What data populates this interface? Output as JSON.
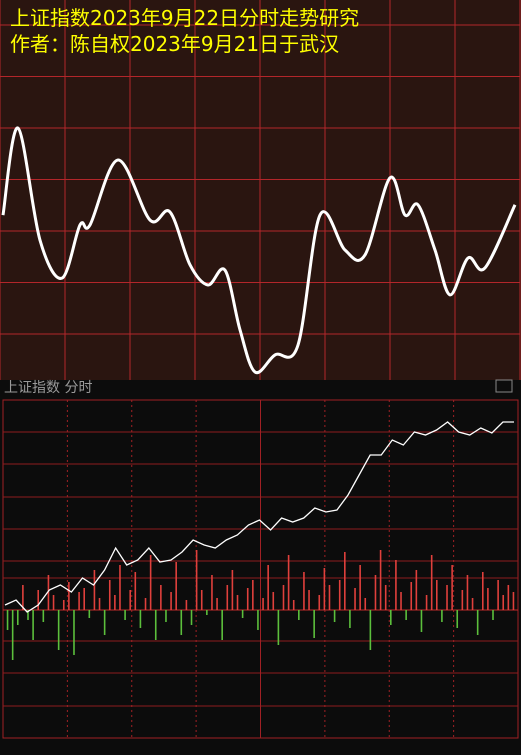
{
  "chart_data": [
    {
      "type": "line",
      "title": "上证指数2023年9月22日分时走势研究",
      "subtitle": "作者：陈自权2023年9月21日于武汉",
      "x": [
        3,
        18,
        40,
        62,
        80,
        90,
        118,
        150,
        170,
        190,
        208,
        225,
        240,
        255,
        275,
        298,
        320,
        345,
        365,
        390,
        405,
        418,
        435,
        450,
        468,
        485,
        515
      ],
      "series": [
        {
          "color": "#ffffff",
          "values": [
            43.4,
            66.3,
            36.8,
            26.8,
            40.8,
            40.8,
            57.9,
            42.1,
            44.2,
            30.3,
            25,
            28.9,
            13.2,
            2.1,
            6.6,
            9.2,
            43.4,
            34.2,
            32.9,
            53.2,
            43.4,
            46.1,
            34.2,
            22.4,
            32.1,
            29.5,
            46.1
          ]
        }
      ],
      "xlim": [
        0,
        520
      ],
      "ylim": [
        0,
        100
      ],
      "grid": true
    },
    {
      "type": "intraday",
      "title": "上证指数  分时",
      "price": {
        "color": "#ffffff",
        "values": [
          5,
          10,
          -2,
          5,
          20,
          25,
          18,
          32,
          25,
          40,
          62,
          45,
          50,
          62,
          48,
          50,
          58,
          70,
          65,
          62,
          70,
          75,
          85,
          90,
          80,
          92,
          88,
          92,
          102,
          98,
          100,
          115,
          135,
          155,
          155,
          170,
          165,
          178,
          175,
          180,
          188,
          178,
          175,
          182,
          177,
          188,
          188
        ]
      },
      "volume": {
        "up_color": "#e0403c",
        "down_color": "#5cbf3c",
        "values": [
          -20,
          -50,
          -15,
          25,
          -10,
          -30,
          20,
          -12,
          35,
          15,
          -40,
          10,
          28,
          -45,
          18,
          22,
          -8,
          40,
          12,
          -25,
          30,
          15,
          45,
          -10,
          20,
          38,
          -18,
          12,
          55,
          -30,
          25,
          -12,
          18,
          48,
          -25,
          10,
          -15,
          60,
          20,
          -5,
          35,
          12,
          -30,
          25,
          40,
          15,
          -8,
          22,
          30,
          -20,
          12,
          45,
          18,
          -35,
          25,
          55,
          10,
          -10,
          38,
          20,
          -28,
          15,
          42,
          25,
          -12,
          30,
          58,
          -18,
          22,
          45,
          12,
          -40,
          35,
          60,
          25,
          -15,
          50,
          18,
          -10,
          28,
          40,
          -22,
          15,
          55,
          30,
          -12,
          25,
          45,
          -18,
          20,
          35,
          12,
          -25,
          38,
          22,
          -10,
          30,
          15,
          25,
          18
        ]
      },
      "ylim": [
        -128,
        210
      ],
      "grid": true
    }
  ]
}
